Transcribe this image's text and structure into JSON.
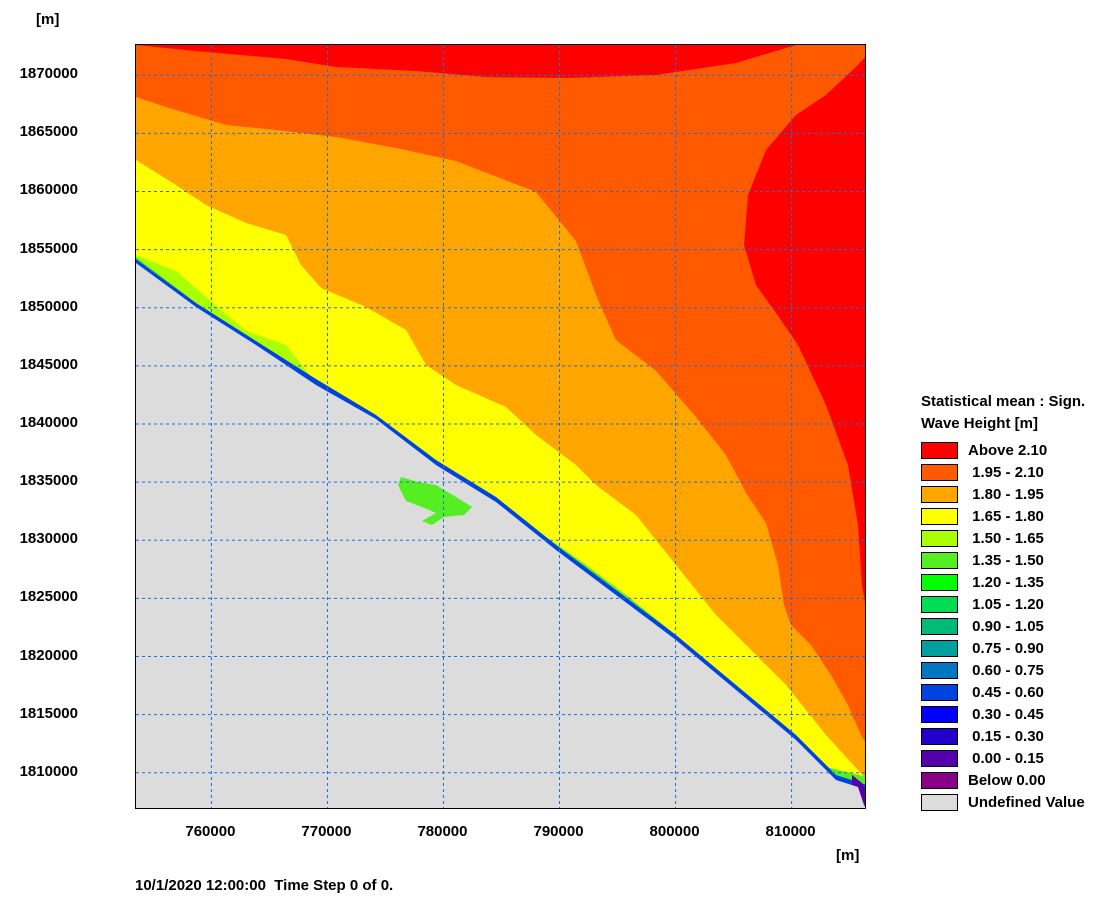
{
  "chart_data": {
    "type": "heatmap",
    "title": "",
    "xlabel": "[m]",
    "ylabel": "[m]",
    "xlim": [
      753500,
      816500
    ],
    "ylim": [
      1806800,
      1872600
    ],
    "x_ticks": [
      "760000",
      "770000",
      "780000",
      "790000",
      "800000",
      "810000"
    ],
    "y_ticks": [
      "1870000",
      "1865000",
      "1860000",
      "1855000",
      "1850000",
      "1845000",
      "1840000",
      "1835000",
      "1830000",
      "1825000",
      "1820000",
      "1815000",
      "1810000"
    ],
    "grid": true,
    "legend_position": "right",
    "legend_title_lines": [
      "Statistical mean : Sign.",
      "Wave Height [m]"
    ],
    "legend": [
      {
        "label": "Above 2.10",
        "color": "#ff0000"
      },
      {
        "label": " 1.95 - 2.10",
        "color": "#ff5a00"
      },
      {
        "label": " 1.80 - 1.95",
        "color": "#ffa500"
      },
      {
        "label": " 1.65 - 1.80",
        "color": "#ffff00"
      },
      {
        "label": " 1.50 - 1.65",
        "color": "#aaff00"
      },
      {
        "label": " 1.35 - 1.50",
        "color": "#55ee22"
      },
      {
        "label": " 1.20 - 1.35",
        "color": "#00ff00"
      },
      {
        "label": " 1.05 - 1.20",
        "color": "#00dd55"
      },
      {
        "label": " 0.90 - 1.05",
        "color": "#00bb77"
      },
      {
        "label": " 0.75 - 0.90",
        "color": "#00a0a0"
      },
      {
        "label": " 0.60 - 0.75",
        "color": "#0077c0"
      },
      {
        "label": " 0.45 - 0.60",
        "color": "#0044e0"
      },
      {
        "label": " 0.30 - 0.45",
        "color": "#0000ff"
      },
      {
        "label": " 0.15 - 0.30",
        "color": "#2200cc"
      },
      {
        "label": " 0.00 - 0.15",
        "color": "#5500aa"
      },
      {
        "label": "Below 0.00",
        "color": "#880088"
      },
      {
        "label": "Undefined Value",
        "color": "#dcdcdc"
      }
    ],
    "footer": "10/1/2020 12:00:00  Time Step 0 of 0."
  }
}
